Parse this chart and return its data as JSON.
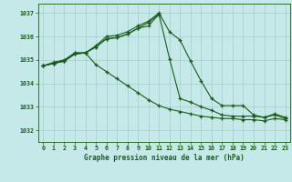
{
  "title": "Graphe pression niveau de la mer (hPa)",
  "background_color": "#c5e8e8",
  "grid_color": "#a8cccc",
  "line_color": "#1a5c1a",
  "xlim": [
    -0.5,
    23.5
  ],
  "ylim": [
    1031.5,
    1037.4
  ],
  "yticks": [
    1032,
    1033,
    1034,
    1035,
    1036,
    1037
  ],
  "xticks": [
    0,
    1,
    2,
    3,
    4,
    5,
    6,
    7,
    8,
    9,
    10,
    11,
    12,
    13,
    14,
    15,
    16,
    17,
    18,
    19,
    20,
    21,
    22,
    23
  ],
  "line1_x": [
    0,
    1,
    2,
    3,
    4,
    5,
    6,
    7,
    8,
    9,
    10,
    11
  ],
  "line1_y": [
    1034.75,
    1034.85,
    1034.95,
    1035.3,
    1035.3,
    1035.55,
    1035.9,
    1035.95,
    1036.1,
    1036.35,
    1036.6,
    1036.95
  ],
  "line2_x": [
    0,
    1,
    2,
    3,
    4,
    5,
    6,
    7,
    8,
    9,
    10,
    11,
    12,
    13,
    14,
    15,
    16,
    17,
    18,
    19,
    20,
    21,
    22,
    23
  ],
  "line2_y": [
    1034.75,
    1034.9,
    1035.0,
    1035.3,
    1035.3,
    1035.6,
    1036.0,
    1036.05,
    1036.2,
    1036.45,
    1036.65,
    1037.0,
    1036.2,
    1035.85,
    1034.95,
    1034.1,
    1033.35,
    1033.05,
    1033.05,
    1033.05,
    1032.65,
    1032.55,
    1032.65,
    1032.5
  ],
  "line3_x": [
    0,
    1,
    2,
    3,
    4,
    5,
    6,
    7,
    8,
    9,
    10,
    11,
    12,
    13,
    14,
    15,
    16,
    17,
    18,
    19,
    20,
    21,
    22,
    23
  ],
  "line3_y": [
    1034.75,
    1034.85,
    1034.95,
    1035.25,
    1035.3,
    1035.55,
    1035.9,
    1035.95,
    1036.1,
    1036.35,
    1036.45,
    1036.95,
    1035.05,
    1033.35,
    1033.2,
    1033.0,
    1032.85,
    1032.65,
    1032.6,
    1032.6,
    1032.6,
    1032.55,
    1032.7,
    1032.55
  ],
  "line4_x": [
    0,
    1,
    2,
    3,
    4,
    5,
    6,
    7,
    8,
    9,
    10,
    11,
    12,
    13,
    14,
    15,
    16,
    17,
    18,
    19,
    20,
    21,
    22,
    23
  ],
  "line4_y": [
    1034.75,
    1034.85,
    1034.95,
    1035.25,
    1035.3,
    1034.8,
    1034.5,
    1034.2,
    1033.9,
    1033.6,
    1033.3,
    1033.05,
    1032.9,
    1032.8,
    1032.7,
    1032.6,
    1032.55,
    1032.5,
    1032.5,
    1032.45,
    1032.45,
    1032.4,
    1032.5,
    1032.45
  ]
}
